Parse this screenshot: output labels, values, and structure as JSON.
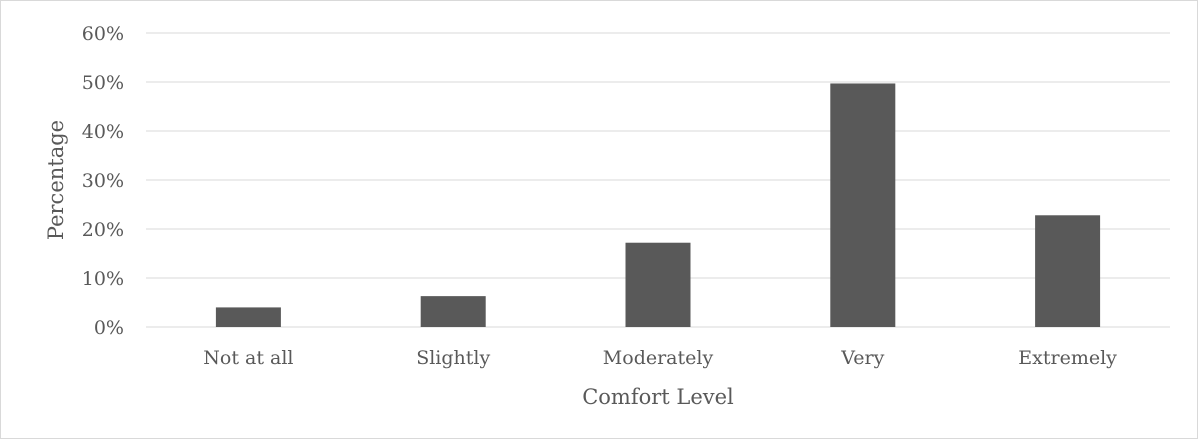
{
  "chart_data": {
    "type": "bar",
    "categories": [
      "Not at all",
      "Slightly",
      "Moderately",
      "Very",
      "Extremely"
    ],
    "values": [
      4,
      6.3,
      17.2,
      49.7,
      22.8
    ],
    "value_unit": "%",
    "xlabel": "Comfort Level",
    "ylabel": "Percentage",
    "ylim": [
      0,
      60
    ],
    "yticks": [
      "0%",
      "10%",
      "20%",
      "30%",
      "40%",
      "50%",
      "60%"
    ],
    "ytick_values": [
      0,
      10,
      20,
      30,
      40,
      50,
      60
    ],
    "grid": true,
    "legend": "none",
    "colors": {
      "bar": "#595959",
      "grid": "#d9d9d9",
      "text": "#595959",
      "border": "#d9d9d9"
    }
  }
}
